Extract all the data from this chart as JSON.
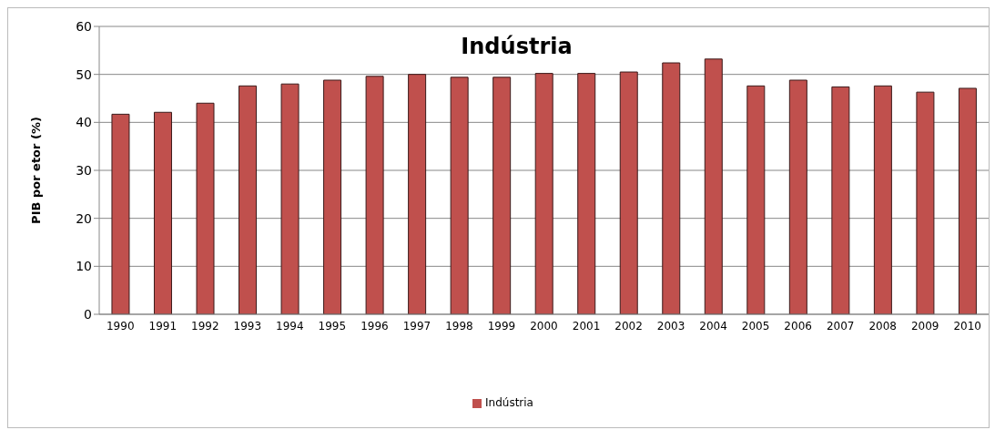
{
  "chart_data": {
    "type": "bar",
    "title": "Indústria",
    "ylabel": "PIB por etor (%)",
    "categories": [
      "1990",
      "1991",
      "1992",
      "1993",
      "1994",
      "1995",
      "1996",
      "1997",
      "1998",
      "1999",
      "2000",
      "2001",
      "2002",
      "2003",
      "2004",
      "2005",
      "2006",
      "2007",
      "2008",
      "2009",
      "2010"
    ],
    "series": [
      {
        "name": "Indústria",
        "color": "#c0504d",
        "values": [
          41.7,
          42.1,
          44.0,
          47.6,
          48.0,
          48.8,
          49.6,
          50.0,
          49.4,
          49.4,
          50.2,
          50.2,
          50.5,
          52.4,
          53.2,
          47.6,
          48.8,
          47.4,
          47.6,
          46.3,
          47.1
        ]
      }
    ],
    "ylim": [
      0,
      60
    ],
    "yticks": [
      0,
      10,
      20,
      30,
      40,
      50,
      60
    ],
    "grid": "y",
    "legend": "bottom"
  }
}
